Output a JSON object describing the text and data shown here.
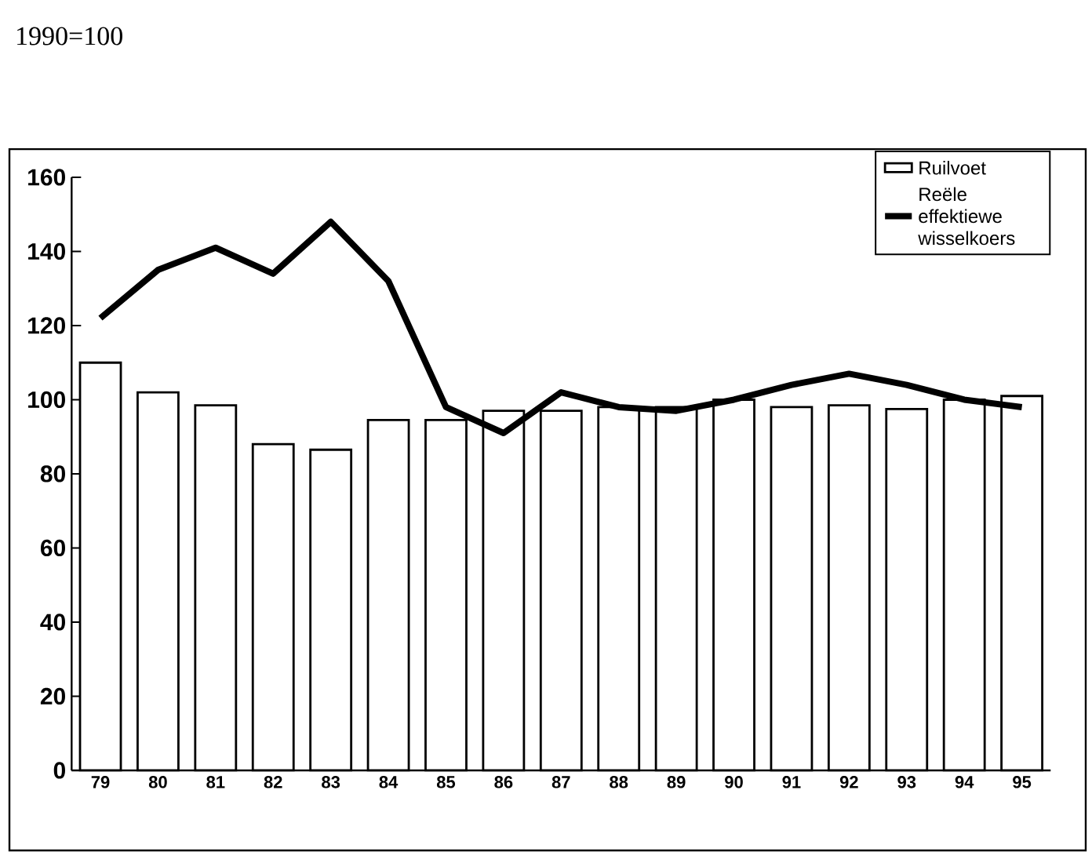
{
  "chart_data": {
    "type": "bar",
    "title": "1990=100",
    "categories": [
      "79",
      "80",
      "81",
      "82",
      "83",
      "84",
      "85",
      "86",
      "87",
      "88",
      "89",
      "90",
      "91",
      "92",
      "93",
      "94",
      "95"
    ],
    "series": [
      {
        "name": "Ruilvoet",
        "color": "#ffffff",
        "values": [
          110,
          102,
          98.5,
          88,
          86.5,
          94.5,
          94.5,
          97,
          97,
          98,
          98,
          100,
          98,
          98.5,
          97.5,
          100,
          101
        ]
      },
      {
        "name": "Reële effektiewe wisselkoers",
        "type": "line",
        "color": "#000000",
        "values": [
          122,
          135,
          141,
          134,
          148,
          132,
          98,
          91,
          102,
          98,
          97,
          100,
          104,
          107,
          104,
          100,
          98
        ]
      }
    ],
    "ylim": [
      0,
      160
    ],
    "yticks": [
      0,
      20,
      40,
      60,
      80,
      100,
      120,
      140,
      160
    ],
    "legend": "top right"
  }
}
